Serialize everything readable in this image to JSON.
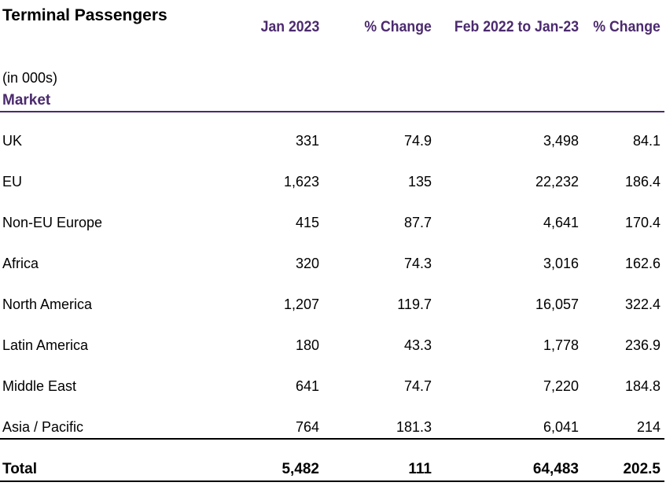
{
  "title": "Terminal Passengers",
  "subtitle": "(in 000s)",
  "columns": [
    "Market",
    "Jan 2023",
    "% Change",
    "Feb 2022 to Jan-23",
    "% Change"
  ],
  "accent_color": "#4b2a6e",
  "rows": [
    {
      "market": "UK",
      "jan2023": "331",
      "change1": "74.9",
      "feb_jan": "3,498",
      "change2": "84.1"
    },
    {
      "market": "EU",
      "jan2023": "1,623",
      "change1": "135",
      "feb_jan": "22,232",
      "change2": "186.4"
    },
    {
      "market": "Non-EU Europe",
      "jan2023": "415",
      "change1": "87.7",
      "feb_jan": "4,641",
      "change2": "170.4"
    },
    {
      "market": "Africa",
      "jan2023": "320",
      "change1": "74.3",
      "feb_jan": "3,016",
      "change2": "162.6"
    },
    {
      "market": "North America",
      "jan2023": "1,207",
      "change1": "119.7",
      "feb_jan": "16,057",
      "change2": "322.4"
    },
    {
      "market": "Latin America",
      "jan2023": "180",
      "change1": "43.3",
      "feb_jan": "1,778",
      "change2": "236.9"
    },
    {
      "market": "Middle East",
      "jan2023": "641",
      "change1": "74.7",
      "feb_jan": "7,220",
      "change2": "184.8"
    },
    {
      "market": "Asia / Pacific",
      "jan2023": "764",
      "change1": "181.3",
      "feb_jan": "6,041",
      "change2": "214"
    }
  ],
  "total": {
    "market": "Total",
    "jan2023": "5,482",
    "change1": "111",
    "feb_jan": "64,483",
    "change2": "202.5"
  }
}
